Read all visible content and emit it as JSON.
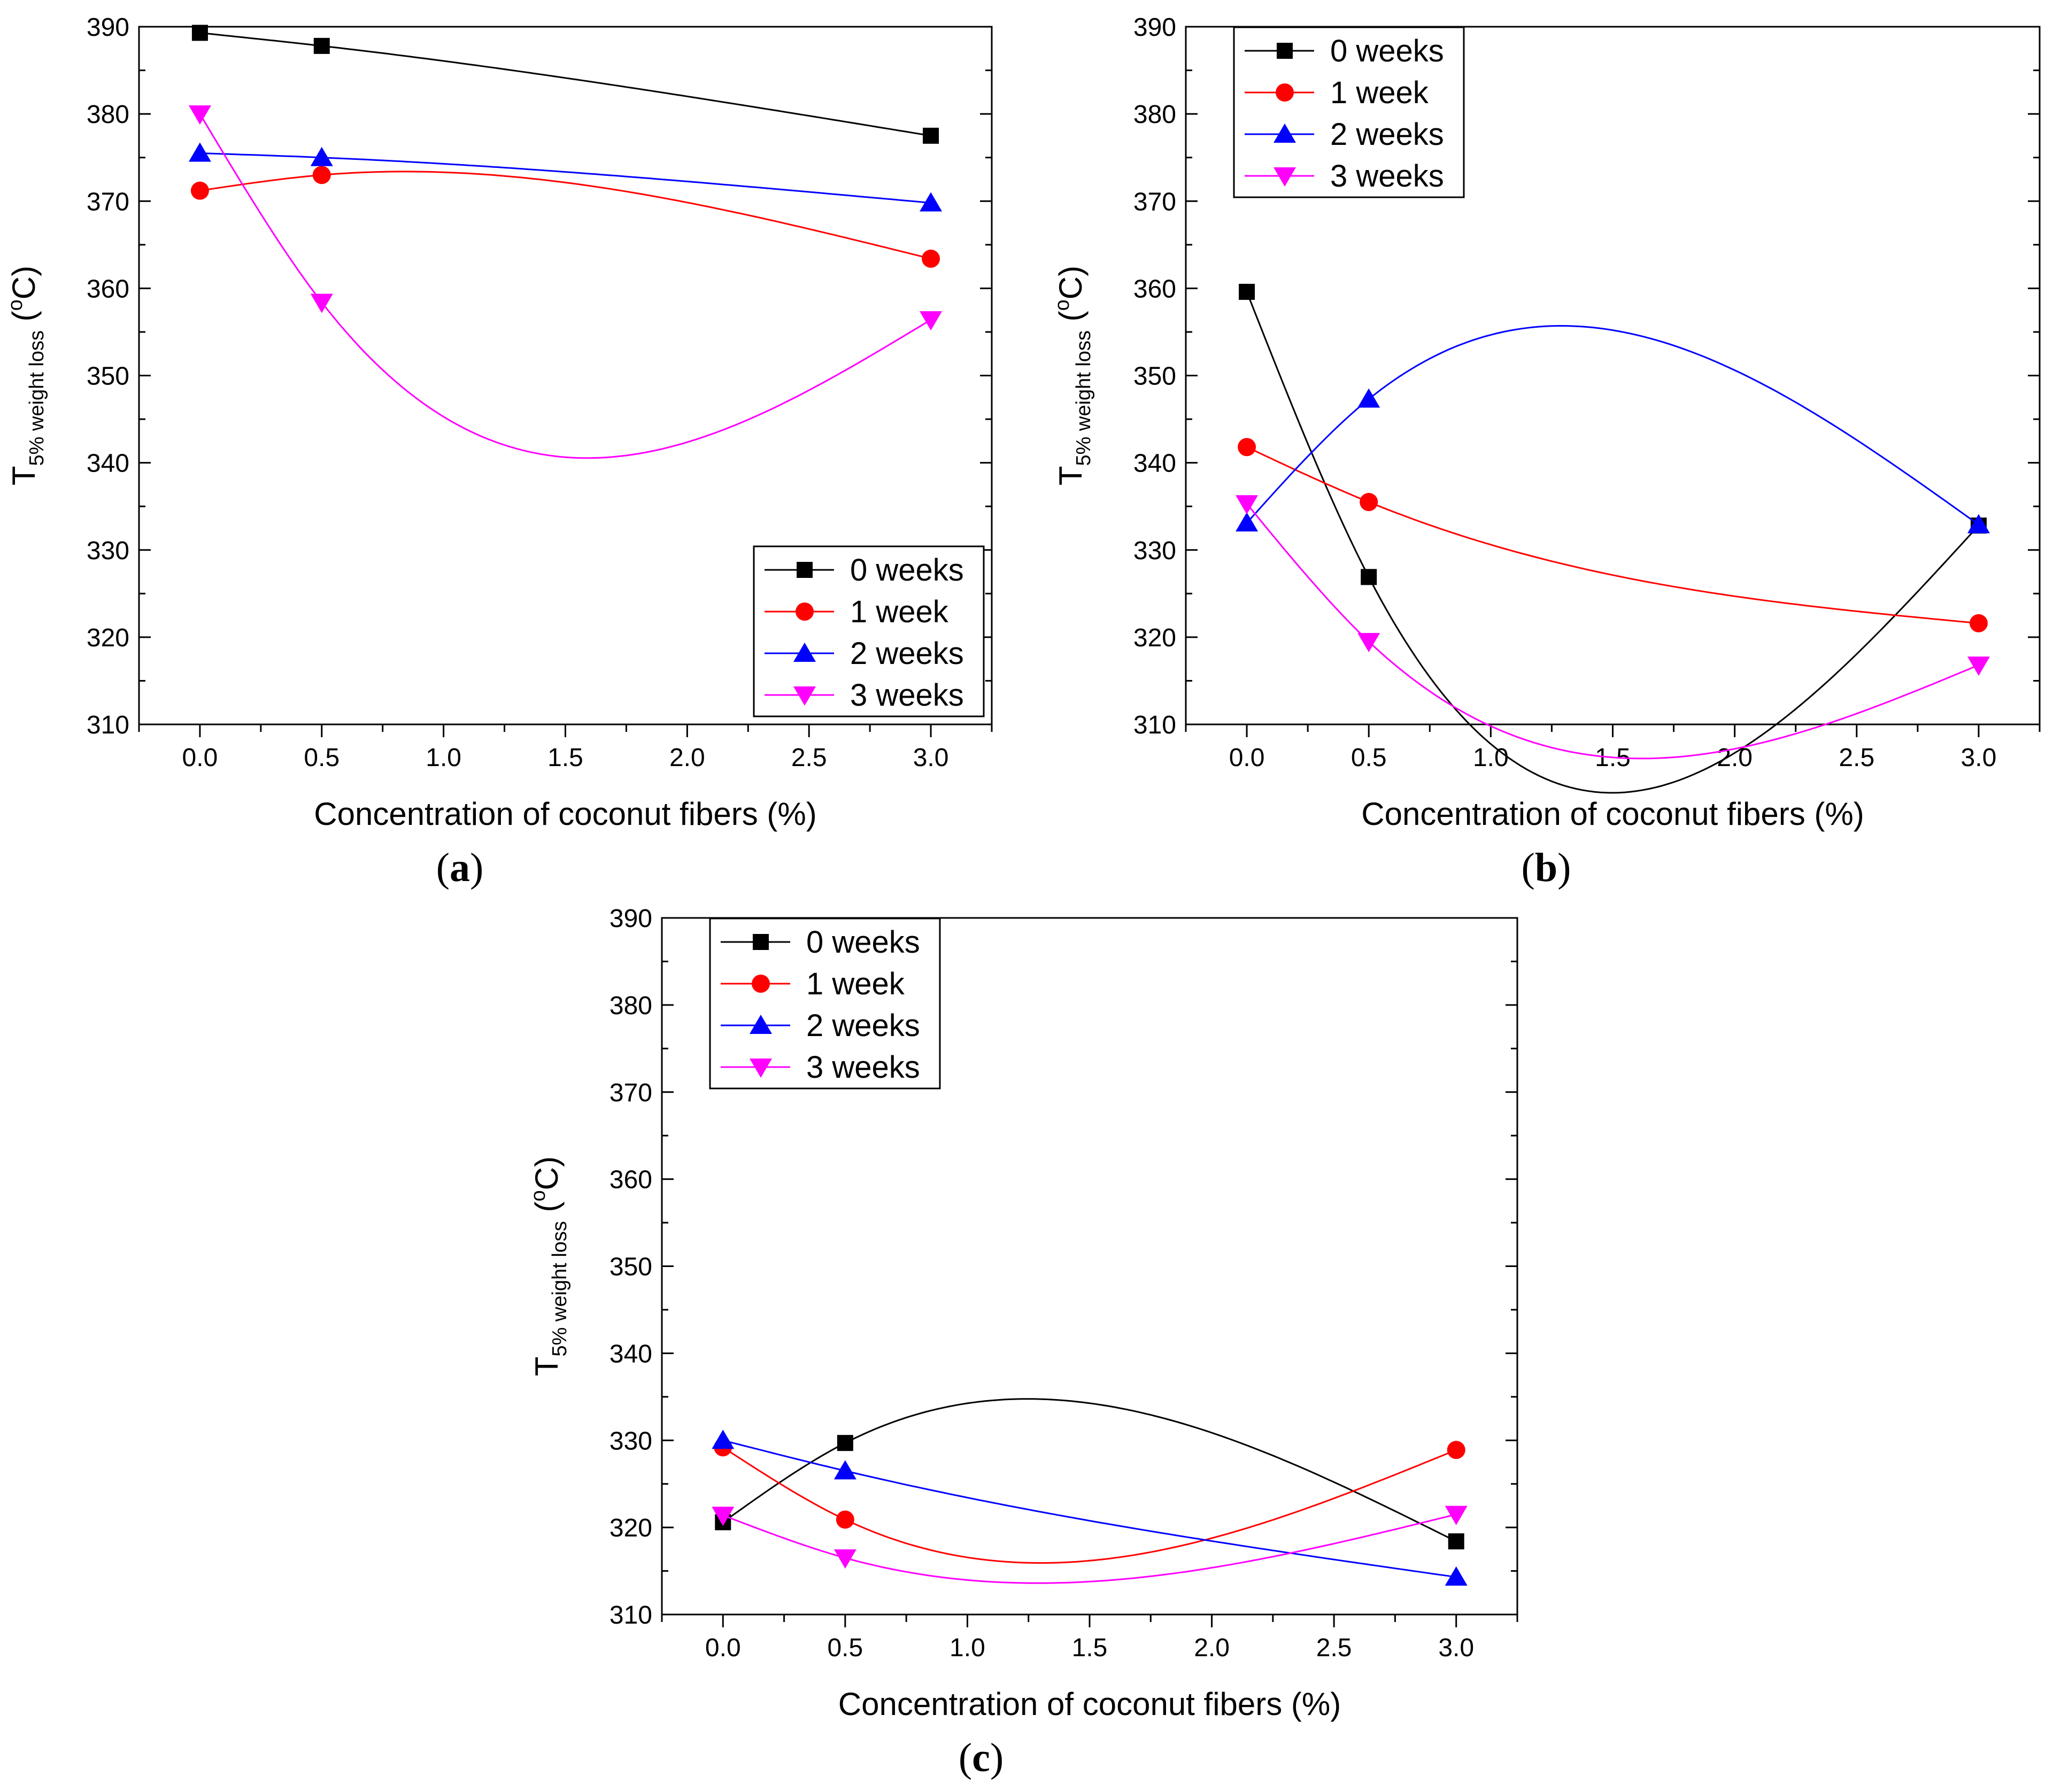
{
  "figure": {
    "captions": [
      "a",
      "b",
      "c"
    ]
  },
  "series_style": [
    {
      "name": "0 weeks",
      "color": "#000000",
      "marker": "square"
    },
    {
      "name": "1 week",
      "color": "#ff0000",
      "marker": "circle"
    },
    {
      "name": "2 weeks",
      "color": "#0000ff",
      "marker": "triangle-up"
    },
    {
      "name": "3 weeks",
      "color": "#ff00ff",
      "marker": "triangle-down"
    }
  ],
  "chart_data": [
    {
      "type": "line",
      "panel": "a",
      "xlabel": "Concentration of coconut fibers (%)",
      "ylabel_main": "T",
      "ylabel_sub": "5% weight loss",
      "ylabel_unit_open": " (",
      "ylabel_unit_sup": "o",
      "ylabel_unit_close": "C)",
      "xlim": [
        -0.25,
        3.25
      ],
      "ylim": [
        310,
        390
      ],
      "xticks": [
        "0.0",
        "0.5",
        "1.0",
        "1.5",
        "2.0",
        "2.5",
        "3.0"
      ],
      "yticks": [
        "310",
        "320",
        "330",
        "340",
        "350",
        "360",
        "370",
        "380",
        "390"
      ],
      "legend_position": "bottom-right",
      "x": [
        0,
        0.5,
        3
      ],
      "series": [
        {
          "name": "0 weeks",
          "values": [
            389.3,
            387.8,
            377.5
          ]
        },
        {
          "name": "1 week",
          "values": [
            371.2,
            373.0,
            363.4
          ]
        },
        {
          "name": "2 weeks",
          "values": [
            375.5,
            375.0,
            369.8
          ]
        },
        {
          "name": "3 weeks",
          "values": [
            380.0,
            358.4,
            356.4
          ]
        }
      ]
    },
    {
      "type": "line",
      "panel": "b",
      "xlabel": "Concentration of coconut fibers (%)",
      "ylabel_main": "T",
      "ylabel_sub": "5% weight loss",
      "ylabel_unit_open": " (",
      "ylabel_unit_sup": "o",
      "ylabel_unit_close": "C)",
      "xlim": [
        -0.25,
        3.25
      ],
      "ylim": [
        310,
        390
      ],
      "xticks": [
        "0.0",
        "0.5",
        "1.0",
        "1.5",
        "2.0",
        "2.5",
        "3.0"
      ],
      "yticks": [
        "310",
        "320",
        "330",
        "340",
        "350",
        "360",
        "370",
        "380",
        "390"
      ],
      "legend_position": "top-left",
      "x": [
        0,
        0.5,
        3
      ],
      "series": [
        {
          "name": "0 weeks",
          "values": [
            359.6,
            326.9,
            332.8
          ]
        },
        {
          "name": "1 week",
          "values": [
            341.8,
            335.5,
            321.6
          ]
        },
        {
          "name": "2 weeks",
          "values": [
            333.1,
            347.3,
            332.9
          ]
        },
        {
          "name": "3 weeks",
          "values": [
            335.3,
            319.5,
            316.8
          ]
        }
      ]
    },
    {
      "type": "line",
      "panel": "c",
      "xlabel": "Concentration of coconut fibers (%)",
      "ylabel_main": "T",
      "ylabel_sub": "5% weight loss",
      "ylabel_unit_open": " (",
      "ylabel_unit_sup": "o",
      "ylabel_unit_close": "C)",
      "xlim": [
        -0.25,
        3.25
      ],
      "ylim": [
        310,
        390
      ],
      "xticks": [
        "0.0",
        "0.5",
        "1.0",
        "1.5",
        "2.0",
        "2.5",
        "3.0"
      ],
      "yticks": [
        "310",
        "320",
        "330",
        "340",
        "350",
        "360",
        "370",
        "380",
        "390"
      ],
      "legend_position": "top-left",
      "x": [
        0,
        0.5,
        3
      ],
      "series": [
        {
          "name": "0 weeks",
          "values": [
            320.6,
            329.7,
            318.4
          ]
        },
        {
          "name": "1 week",
          "values": [
            329.2,
            320.9,
            328.9
          ]
        },
        {
          "name": "2 weeks",
          "values": [
            330.0,
            326.5,
            314.3
          ]
        },
        {
          "name": "3 weeks",
          "values": [
            321.4,
            316.5,
            321.5
          ]
        }
      ]
    }
  ]
}
